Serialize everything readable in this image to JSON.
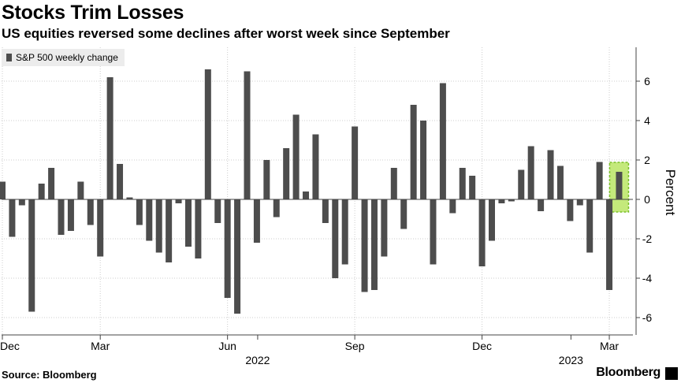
{
  "title": "Stocks Trim Losses",
  "subtitle": "US equities reversed some declines after worst week since September",
  "source": "Source: Bloomberg",
  "brand": "Bloomberg",
  "colors": {
    "bar": "#4d4d4d",
    "highlight_fill": "#b5e35a",
    "highlight_stroke": "#7bbf2a",
    "grid": "#cccccc",
    "axis": "#444444"
  },
  "chart_data": {
    "type": "bar",
    "title": "Stocks Trim Losses",
    "subtitle": "US equities reversed some declines after worst week since September",
    "legend": [
      "S&P 500 weekly change"
    ],
    "legend_position": "top-left",
    "ylabel": "Percent",
    "ylim": [
      -7,
      7.8
    ],
    "y_ticks": [
      -6,
      -4,
      -2,
      0,
      2,
      4,
      6
    ],
    "y_axis_position": "right",
    "grid": "dotted",
    "x_ticks": [
      {
        "label": "Dec",
        "index": 0
      },
      {
        "label": "Mar",
        "index": 10
      },
      {
        "label": "Jun",
        "index": 23
      },
      {
        "label": "Sep",
        "index": 36
      },
      {
        "label": "Dec",
        "index": 49
      },
      {
        "label": "Mar",
        "index": 62
      }
    ],
    "year_labels": [
      {
        "label": "2022",
        "index": 26
      },
      {
        "label": "2023",
        "index": 58
      }
    ],
    "highlight_index": 63,
    "values": [
      0.9,
      -1.9,
      -0.3,
      -5.7,
      0.8,
      1.6,
      -1.8,
      -1.6,
      0.9,
      -1.3,
      -2.9,
      6.2,
      1.8,
      0.1,
      -1.3,
      -2.1,
      -2.7,
      -3.2,
      -0.2,
      -2.4,
      -3.0,
      6.6,
      -1.2,
      -5.0,
      -5.8,
      6.5,
      -2.2,
      2.0,
      -0.9,
      2.6,
      4.3,
      0.4,
      3.3,
      -1.2,
      -4.0,
      -3.3,
      3.7,
      -4.7,
      -4.6,
      -2.9,
      1.6,
      -1.5,
      4.8,
      4.0,
      -3.3,
      5.9,
      -0.7,
      1.6,
      1.2,
      -3.4,
      -2.1,
      -0.2,
      -0.1,
      1.5,
      2.7,
      -0.6,
      2.5,
      1.7,
      -1.1,
      -0.3,
      -2.7,
      1.9,
      -4.6,
      1.4
    ]
  }
}
